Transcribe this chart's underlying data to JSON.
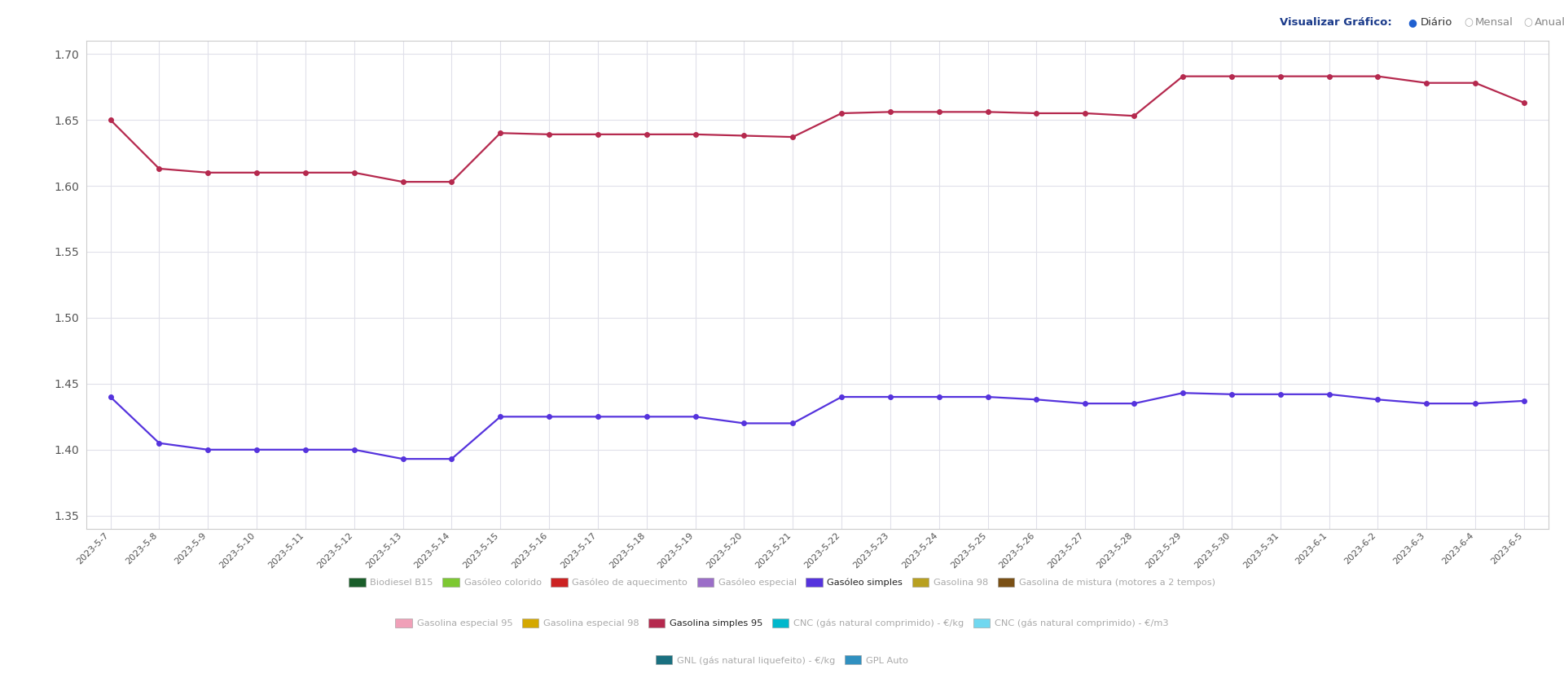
{
  "dates": [
    "2023-5-7",
    "2023-5-8",
    "2023-5-9",
    "2023-5-10",
    "2023-5-11",
    "2023-5-12",
    "2023-5-13",
    "2023-5-14",
    "2023-5-15",
    "2023-5-16",
    "2023-5-17",
    "2023-5-18",
    "2023-5-19",
    "2023-5-20",
    "2023-5-21",
    "2023-5-22",
    "2023-5-23",
    "2023-5-24",
    "2023-5-25",
    "2023-5-26",
    "2023-5-27",
    "2023-5-28",
    "2023-5-29",
    "2023-5-30",
    "2023-5-31",
    "2023-6-1",
    "2023-6-2",
    "2023-6-3",
    "2023-6-4",
    "2023-6-5"
  ],
  "gasolina95": [
    1.65,
    1.613,
    1.61,
    1.61,
    1.61,
    1.61,
    1.603,
    1.603,
    1.64,
    1.639,
    1.639,
    1.639,
    1.639,
    1.638,
    1.637,
    1.655,
    1.656,
    1.656,
    1.656,
    1.655,
    1.655,
    1.653,
    1.683,
    1.683,
    1.683,
    1.683,
    1.683,
    1.678,
    1.678,
    1.663
  ],
  "gasoleo_simples": [
    1.44,
    1.405,
    1.4,
    1.4,
    1.4,
    1.4,
    1.393,
    1.393,
    1.425,
    1.425,
    1.425,
    1.425,
    1.425,
    1.42,
    1.42,
    1.44,
    1.44,
    1.44,
    1.44,
    1.438,
    1.435,
    1.435,
    1.443,
    1.442,
    1.442,
    1.442,
    1.438,
    1.435,
    1.435,
    1.437
  ],
  "gasolina95_color": "#b5294e",
  "gasoleo_simples_color": "#5533dd",
  "bg_color": "#ffffff",
  "grid_color": "#e0e0ea",
  "ylim": [
    1.34,
    1.71
  ],
  "yticks": [
    1.35,
    1.4,
    1.45,
    1.5,
    1.55,
    1.6,
    1.65,
    1.7
  ],
  "legend_rows": [
    [
      {
        "label": "Biodiesel B15",
        "color": "#1a5e2a",
        "active": false
      },
      {
        "label": "Gasóleo colorido",
        "color": "#7dc832",
        "active": false
      },
      {
        "label": "Gasóleo de aquecimento",
        "color": "#cc2222",
        "active": false
      },
      {
        "label": "Gasóleo especial",
        "color": "#9b6ec8",
        "active": false
      },
      {
        "label": "Gasóleo simples",
        "color": "#5533dd",
        "active": true
      },
      {
        "label": "Gasolina 98",
        "color": "#b8a020",
        "active": false
      },
      {
        "label": "Gasolina de mistura (motores a 2 tempos)",
        "color": "#7a5015",
        "active": false
      }
    ],
    [
      {
        "label": "Gasolina especial 95",
        "color": "#f0a0b8",
        "active": false
      },
      {
        "label": "Gasolina especial 98",
        "color": "#d4a800",
        "active": false
      },
      {
        "label": "Gasolina simples 95",
        "color": "#b5294e",
        "active": true
      },
      {
        "label": "CNC (gás natural comprimido) - €/kg",
        "color": "#00b8cc",
        "active": false
      },
      {
        "label": "CNC (gás natural comprimido) - €/m3",
        "color": "#70d8f0",
        "active": false
      }
    ],
    [
      {
        "label": "GNL (gás natural liquefeito) - €/kg",
        "color": "#1a7080",
        "active": false
      },
      {
        "label": "GPL Auto",
        "color": "#3090c0",
        "active": false
      }
    ]
  ],
  "header_label": "Visualizar Gráfico:",
  "header_options": [
    "Diário",
    "Mensal",
    "Anual"
  ],
  "header_selected": 0,
  "header_color": "#1a3a8a",
  "selected_dot_color": "#2060d0",
  "unselected_dot_color": "#aaaaaa",
  "unselected_text_color": "#888888",
  "selected_text_color": "#333333"
}
